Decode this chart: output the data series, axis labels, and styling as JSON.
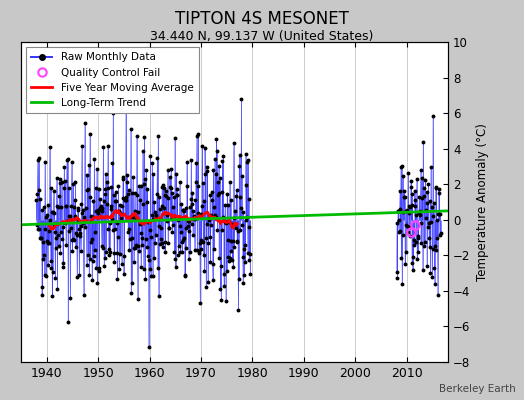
{
  "title": "TIPTON 4S MESONET",
  "subtitle": "34.440 N, 99.137 W (United States)",
  "ylabel": "Temperature Anomaly (°C)",
  "attribution": "Berkeley Earth",
  "xlim": [
    1935,
    2018
  ],
  "ylim": [
    -8,
    10
  ],
  "yticks": [
    -8,
    -6,
    -4,
    -2,
    0,
    2,
    4,
    6,
    8,
    10
  ],
  "xticks": [
    1940,
    1950,
    1960,
    1970,
    1980,
    1990,
    2000,
    2010
  ],
  "raw_color": "#3333ff",
  "marker_color": "#000000",
  "qc_color": "#ff44ff",
  "moving_avg_color": "#ff0000",
  "trend_color": "#00bb00",
  "figure_bg": "#c8c8c8",
  "plot_bg": "#ffffff",
  "seed": 42,
  "t1_start": 1938.0,
  "t1_end": 1979.6,
  "t2_start": 2008.0,
  "t2_end": 2016.6,
  "amp1": 2.2,
  "amp2": 1.8,
  "trend_x": [
    1935,
    2018
  ],
  "trend_y": [
    -0.28,
    0.5
  ],
  "qc_times": [
    2010.75,
    2011.5
  ],
  "qc_vals": [
    -0.7,
    -0.3
  ]
}
